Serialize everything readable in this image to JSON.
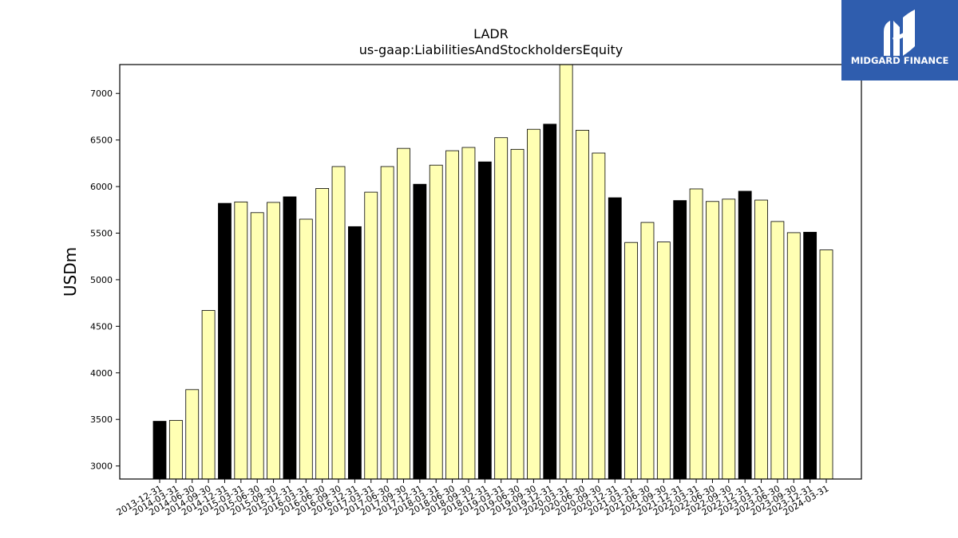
{
  "chart_data": {
    "type": "bar",
    "title": "LADR",
    "subtitle": "us-gaap:LiabilitiesAndStockholdersEquity",
    "xlabel": "",
    "ylabel": "USDm",
    "ylim": [
      2860,
      7310
    ],
    "yticks": [
      3000,
      3500,
      4000,
      4500,
      5000,
      5500,
      6000,
      6500,
      7000
    ],
    "grid": false,
    "legend": "none",
    "colors": {
      "annual": "#000000",
      "quarterly": "#ffffb3",
      "edge": "#000000"
    },
    "categories": [
      "2013-12-31",
      "2014-03-31",
      "2014-06-30",
      "2014-09-30",
      "2014-12-31",
      "2015-03-31",
      "2015-06-30",
      "2015-09-30",
      "2015-12-31",
      "2016-03-31",
      "2016-06-30",
      "2016-09-30",
      "2016-12-31",
      "2017-03-31",
      "2017-06-30",
      "2017-09-30",
      "2017-12-31",
      "2018-03-31",
      "2018-06-30",
      "2018-09-30",
      "2018-12-31",
      "2019-03-31",
      "2019-06-30",
      "2019-09-30",
      "2019-12-31",
      "2020-03-31",
      "2020-06-30",
      "2020-09-30",
      "2020-12-31",
      "2021-03-31",
      "2021-06-30",
      "2021-09-30",
      "2021-12-31",
      "2022-03-31",
      "2022-06-30",
      "2022-09-30",
      "2022-12-31",
      "2023-03-31",
      "2023-06-30",
      "2023-09-30",
      "2023-12-31",
      "2024-03-31"
    ],
    "values": [
      3480,
      3490,
      3820,
      4670,
      5820,
      5835,
      5720,
      5830,
      5890,
      5650,
      5980,
      6215,
      5570,
      5940,
      6215,
      6410,
      6025,
      6230,
      6385,
      6420,
      6265,
      6525,
      6400,
      6615,
      6670,
      7310,
      6605,
      6360,
      5880,
      5400,
      5615,
      5405,
      5850,
      5975,
      5840,
      5865,
      5950,
      5855,
      5625,
      5505,
      5510,
      5320
    ],
    "annual_flags": [
      1,
      0,
      0,
      0,
      1,
      0,
      0,
      0,
      1,
      0,
      0,
      0,
      1,
      0,
      0,
      0,
      1,
      0,
      0,
      0,
      1,
      0,
      0,
      0,
      1,
      0,
      0,
      0,
      1,
      0,
      0,
      0,
      1,
      0,
      0,
      0,
      1,
      0,
      0,
      0,
      1,
      0
    ]
  },
  "logo": {
    "brand": "MIDGARD FINANCE",
    "bg_color": "#2f5dae",
    "icon": "midgard-m-logo-icon"
  }
}
